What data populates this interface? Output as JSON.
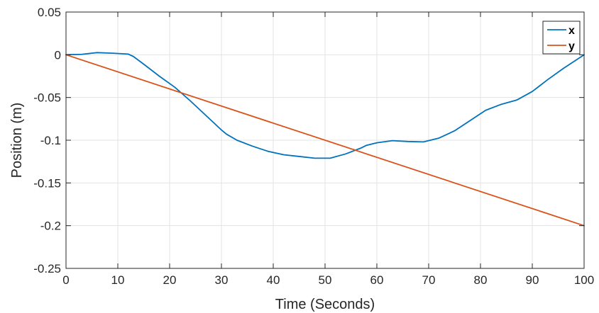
{
  "chart_data": {
    "type": "line",
    "title": "",
    "xlabel": "Time (Seconds)",
    "ylabel": "Position (m)",
    "xlim": [
      0,
      100
    ],
    "ylim": [
      -0.25,
      0.05
    ],
    "xticks": [
      0,
      10,
      20,
      30,
      40,
      50,
      60,
      70,
      80,
      90,
      100
    ],
    "yticks": [
      0.05,
      0,
      -0.05,
      -0.1,
      -0.15,
      -0.2,
      -0.25
    ],
    "xtick_labels": [
      "0",
      "10",
      "20",
      "30",
      "40",
      "50",
      "60",
      "70",
      "80",
      "90",
      "100"
    ],
    "ytick_labels": [
      "0.05",
      "0",
      "-0.05",
      "-0.1",
      "-0.15",
      "-0.2",
      "-0.25"
    ],
    "grid": true,
    "legend_position": "top-right",
    "series": [
      {
        "name": "x",
        "color": "#0072BD",
        "x": [
          0,
          3,
          6,
          9,
          12,
          13,
          15,
          18,
          21,
          24,
          27,
          30,
          31,
          33,
          36,
          39,
          42,
          45,
          48,
          51,
          54,
          57,
          58,
          60,
          63,
          66,
          69,
          72,
          75,
          78,
          81,
          84,
          87,
          90,
          93,
          96,
          100
        ],
        "y": [
          0,
          0.0005,
          0.0025,
          0.0018,
          0.0008,
          -0.002,
          -0.011,
          -0.025,
          -0.038,
          -0.054,
          -0.071,
          -0.088,
          -0.093,
          -0.1,
          -0.107,
          -0.113,
          -0.117,
          -0.119,
          -0.121,
          -0.121,
          -0.116,
          -0.109,
          -0.106,
          -0.103,
          -0.1005,
          -0.1015,
          -0.102,
          -0.0975,
          -0.089,
          -0.077,
          -0.065,
          -0.058,
          -0.053,
          -0.043,
          -0.029,
          -0.016,
          0
        ]
      },
      {
        "name": "y",
        "color": "#D95319",
        "x": [
          0,
          100
        ],
        "y": [
          0,
          -0.2
        ]
      }
    ]
  }
}
